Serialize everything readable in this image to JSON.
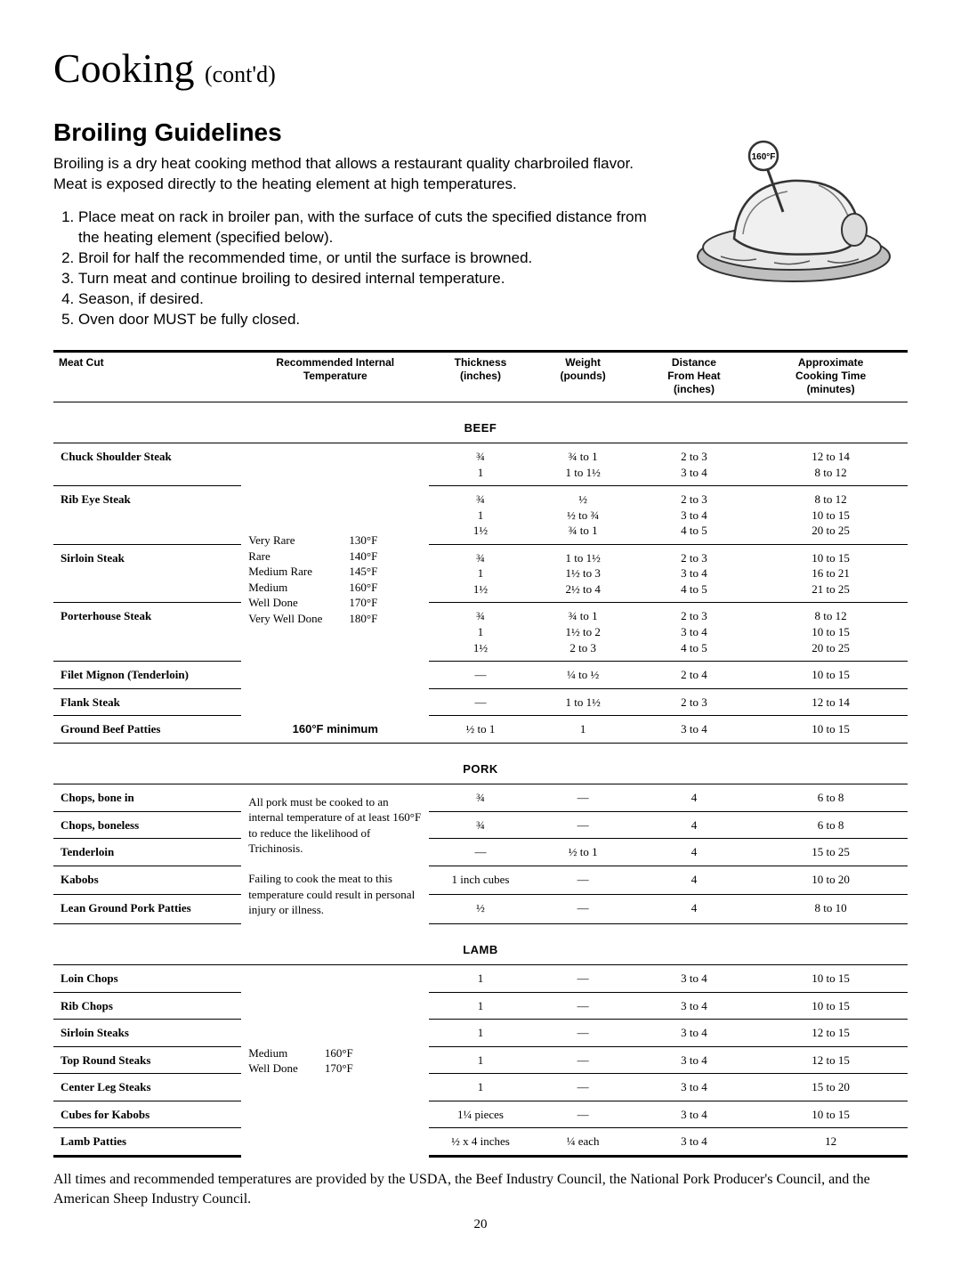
{
  "page": {
    "title_main": "Cooking",
    "title_sub": "(cont'd)",
    "page_number": "20"
  },
  "section": {
    "heading": "Broiling Guidelines",
    "intro": "Broiling is a dry heat cooking method that allows a restaurant quality charbroiled flavor. Meat is exposed directly to the heating element at high temperatures.",
    "steps": [
      "Place meat on rack in broiler pan, with the surface of cuts the specified distance from the heating element (specified below).",
      "Broil for half the recommended time, or until the surface is browned.",
      "Turn meat and continue broiling to desired internal temperature.",
      "Season, if desired.",
      "Oven door MUST be fully closed."
    ],
    "footnote": "All times and recommended temperatures are provided by the USDA, the Beef Industry Council, the National Pork Producer's Council, and the American Sheep Industry Council."
  },
  "illustration": {
    "label_temp": "160°F"
  },
  "table": {
    "headers": [
      "Meat Cut",
      "Recommended Internal Temperature",
      "Thickness (inches)",
      "Weight (pounds)",
      "Distance From Heat (inches)",
      "Approximate Cooking Time (minutes)"
    ],
    "col_widths": [
      "22%",
      "22%",
      "12%",
      "12%",
      "14%",
      "18%"
    ]
  },
  "beef": {
    "section_label": "Beef",
    "temps": {
      "labels": [
        "Very Rare",
        "Rare",
        "Medium Rare",
        "Medium",
        "Well Done",
        "Very Well Done"
      ],
      "values": [
        "130°F",
        "140°F",
        "145°F",
        "160°F",
        "170°F",
        "180°F"
      ]
    },
    "ground_note": "160°F minimum",
    "rows": [
      {
        "cut": "Chuck Shoulder Steak",
        "thick": "¾\n1",
        "wt": "¾ to 1\n1 to 1½",
        "dist": "2 to 3\n3 to 4",
        "time": "12 to 14\n8 to 12"
      },
      {
        "cut": "Rib Eye Steak",
        "thick": "¾\n1\n1½",
        "wt": "½\n½ to ¾\n¾ to 1",
        "dist": "2 to 3\n3 to 4\n4 to 5",
        "time": "8 to 12\n10 to 15\n20 to 25"
      },
      {
        "cut": "Sirloin Steak",
        "thick": "¾\n1\n1½",
        "wt": "1 to 1½\n1½ to 3\n2½ to 4",
        "dist": "2 to 3\n3 to 4\n4 to 5",
        "time": "10 to 15\n16 to 21\n21 to 25"
      },
      {
        "cut": "Porterhouse Steak",
        "thick": "¾\n1\n1½",
        "wt": "¾ to 1\n1½ to 2\n2 to 3",
        "dist": "2 to 3\n3 to 4\n4 to 5",
        "time": "8 to 12\n10 to 15\n20 to 25"
      },
      {
        "cut": "Filet Mignon (Tenderloin)",
        "thick": "—",
        "wt": "¼ to ½",
        "dist": "2 to 4",
        "time": "10 to 15"
      },
      {
        "cut": "Flank Steak",
        "thick": "—",
        "wt": "1 to 1½",
        "dist": "2 to 3",
        "time": "12 to 14"
      },
      {
        "cut": "Ground Beef Patties",
        "thick": "½ to 1",
        "wt": "1",
        "dist": "3 to 4",
        "time": "10 to 15"
      }
    ]
  },
  "pork": {
    "section_label": "Pork",
    "note1": "All pork must be cooked to an internal temperature of at least 160°F to reduce the likelihood of Trichinosis.",
    "note2": "Failing to cook the meat to this temperature could result in personal injury or illness.",
    "rows": [
      {
        "cut": "Chops, bone in",
        "thick": "¾",
        "wt": "—",
        "dist": "4",
        "time": "6 to 8"
      },
      {
        "cut": "Chops, boneless",
        "thick": "¾",
        "wt": "—",
        "dist": "4",
        "time": "6 to 8"
      },
      {
        "cut": "Tenderloin",
        "thick": "—",
        "wt": "½ to 1",
        "dist": "4",
        "time": "15 to 25"
      },
      {
        "cut": "Kabobs",
        "thick": "1 inch cubes",
        "wt": "—",
        "dist": "4",
        "time": "10 to 20"
      },
      {
        "cut": "Lean Ground Pork Patties",
        "thick": "½",
        "wt": "—",
        "dist": "4",
        "time": "8 to 10"
      }
    ]
  },
  "lamb": {
    "section_label": "Lamb",
    "temps": {
      "labels": [
        "Medium",
        "Well Done"
      ],
      "values": [
        "160°F",
        "170°F"
      ]
    },
    "rows": [
      {
        "cut": "Loin Chops",
        "thick": "1",
        "wt": "—",
        "dist": "3 to 4",
        "time": "10 to 15"
      },
      {
        "cut": "Rib Chops",
        "thick": "1",
        "wt": "—",
        "dist": "3 to 4",
        "time": "10 to 15"
      },
      {
        "cut": "Sirloin Steaks",
        "thick": "1",
        "wt": "—",
        "dist": "3 to 4",
        "time": "12 to 15"
      },
      {
        "cut": "Top Round Steaks",
        "thick": "1",
        "wt": "—",
        "dist": "3 to 4",
        "time": "12 to 15"
      },
      {
        "cut": "Center Leg Steaks",
        "thick": "1",
        "wt": "—",
        "dist": "3 to 4",
        "time": "15 to 20"
      },
      {
        "cut": "Cubes for Kabobs",
        "thick": "1¼ pieces",
        "wt": "—",
        "dist": "3 to 4",
        "time": "10 to 15"
      },
      {
        "cut": "Lamb Patties",
        "thick": "½ x 4 inches",
        "wt": "¼ each",
        "dist": "3 to 4",
        "time": "12"
      }
    ]
  }
}
